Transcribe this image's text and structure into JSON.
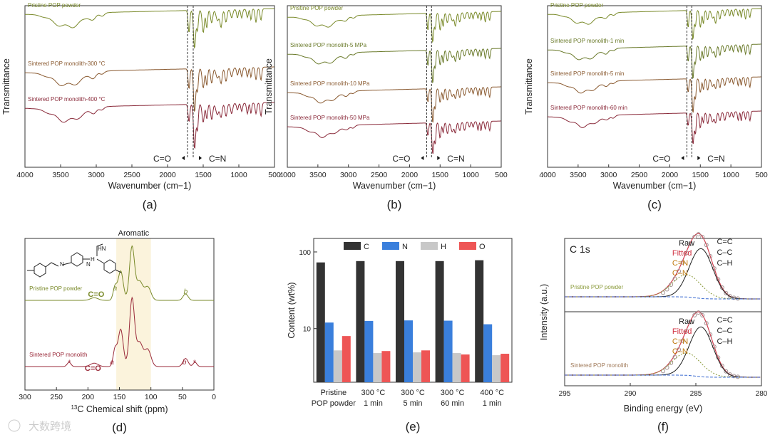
{
  "chart_data": [
    {
      "type": "line",
      "panel": "(a)",
      "xlabel": "Wavenumber (cm−1)",
      "ylabel": "Transmittance",
      "xlim": [
        4000,
        500
      ],
      "xticks": [
        4000,
        3500,
        3000,
        2500,
        2000,
        1500,
        1000,
        500
      ],
      "series": [
        {
          "name": "Pristine POP powder",
          "color": "#7a8a2a"
        },
        {
          "name": "Sintered POP monolith-300 °C",
          "color": "#8a5a30"
        },
        {
          "name": "Sintered POP monolith-400 °C",
          "color": "#8a2a3a"
        }
      ],
      "annotations": [
        "C=O",
        "C=N"
      ]
    },
    {
      "type": "line",
      "panel": "(b)",
      "xlabel": "Wavenumber (cm−1)",
      "ylabel": "Transmittance",
      "xlim": [
        4000,
        500
      ],
      "xticks": [
        4000,
        3500,
        3000,
        2500,
        2000,
        1500,
        1000,
        500
      ],
      "series": [
        {
          "name": "Pristine POP powder",
          "color": "#7a8a2a"
        },
        {
          "name": "Sintered POP monolith-5 MPa",
          "color": "#6a7a2a"
        },
        {
          "name": "Sintered POP monolith-10 MPa",
          "color": "#8a5a30"
        },
        {
          "name": "Sintered POP monolith-50 MPa",
          "color": "#8a2a3a"
        }
      ],
      "annotations": [
        "C=O",
        "C=N"
      ]
    },
    {
      "type": "line",
      "panel": "(c)",
      "xlabel": "Wavenumber (cm−1)",
      "ylabel": "Transmittance",
      "xlim": [
        4000,
        500
      ],
      "xticks": [
        4000,
        3500,
        3000,
        2500,
        2000,
        1500,
        1000,
        500
      ],
      "series": [
        {
          "name": "Pristine POP powder",
          "color": "#7a8a2a"
        },
        {
          "name": "Sintered POP monolith-1 min",
          "color": "#6a7a2a"
        },
        {
          "name": "Sintered POP monolith-5 min",
          "color": "#8a5a30"
        },
        {
          "name": "Sintered POP monolith-60 min",
          "color": "#8a2a3a"
        }
      ],
      "annotations": [
        "C=O",
        "C=N"
      ]
    },
    {
      "type": "line",
      "panel": "(d)",
      "xlabel": "13C Chemical shift (ppm)",
      "xlabel_sup": "13",
      "xlabel_main": "C Chemical shift (ppm)",
      "xlim": [
        300,
        0
      ],
      "xticks": [
        300,
        250,
        200,
        150,
        100,
        50,
        0
      ],
      "series": [
        {
          "name": "Pristine POP powder",
          "color": "#7a8a2a"
        },
        {
          "name": "Sintered POP monolith",
          "color": "#9a2a3a"
        }
      ],
      "region": {
        "label": "Aromatic",
        "range": [
          155,
          100
        ]
      },
      "annotations": [
        "a",
        "b",
        "C=O",
        "*",
        "*"
      ]
    },
    {
      "type": "bar",
      "panel": "(e)",
      "ylabel": "Content (wt%)",
      "yscale": "log",
      "ylim": [
        2,
        150
      ],
      "yticks": [
        10,
        100
      ],
      "categories": [
        [
          "Pristine",
          "POP powder"
        ],
        [
          "300 °C",
          "1 min"
        ],
        [
          "300 °C",
          "5 min"
        ],
        [
          "300 °C",
          "60 min"
        ],
        [
          "400 °C",
          "1 min"
        ]
      ],
      "series": [
        {
          "name": "C",
          "color": "#333333",
          "values": [
            73,
            76,
            76,
            76,
            78
          ]
        },
        {
          "name": "N",
          "color": "#3a7fdc",
          "values": [
            12,
            12.6,
            12.8,
            12.7,
            11.4
          ]
        },
        {
          "name": "H",
          "color": "#c8c8c8",
          "values": [
            5.2,
            4.8,
            4.9,
            4.8,
            4.5
          ]
        },
        {
          "name": "O",
          "color": "#ee5555",
          "values": [
            8,
            5.1,
            5.2,
            4.6,
            4.7
          ]
        }
      ],
      "legend": "top"
    },
    {
      "type": "line",
      "panel": "(f)",
      "title": "C 1s",
      "xlabel": "Binding energy (eV)",
      "ylabel": "Intensity (a.u.)",
      "xlim": [
        295,
        280
      ],
      "xticks": [
        295,
        290,
        285,
        280
      ],
      "series": [
        {
          "name": "Pristine POP powder",
          "color": "#8a9a3a"
        },
        {
          "name": "Sintered POP monolith",
          "color": "#a07a5a"
        }
      ],
      "labels": {
        "raw": "Raw",
        "fitted": "Fitted",
        "cn": [
          "C=N",
          "C–N"
        ],
        "cc": [
          "C=C",
          "C–C",
          "C–H"
        ]
      }
    }
  ],
  "watermark": "大数跨境"
}
